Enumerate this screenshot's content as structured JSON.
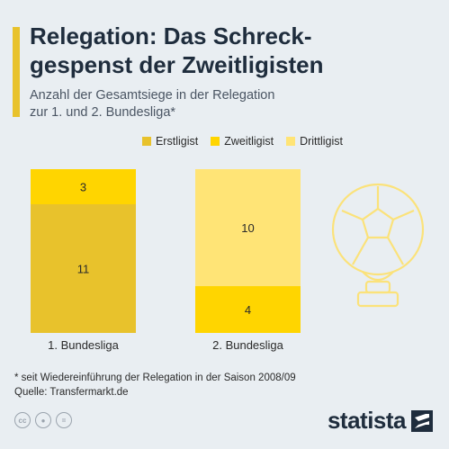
{
  "header": {
    "title": "Relegation: Das Schreck-\ngespenst der Zweitligisten",
    "subtitle": "Anzahl der Gesamtsiege in der Relegation\nzur 1. und 2. Bundesliga*"
  },
  "colors": {
    "accent": "#e8c22c",
    "erstligist": "#e8c22c",
    "zweitligist": "#ffd500",
    "drittligist": "#ffe476"
  },
  "chart_data": {
    "type": "bar",
    "stacked": true,
    "categories": [
      "1. Bundesliga",
      "2. Bundesliga"
    ],
    "series": [
      {
        "name": "Erstligist",
        "values": [
          11,
          0
        ]
      },
      {
        "name": "Zweitligist",
        "values": [
          3,
          4
        ]
      },
      {
        "name": "Drittligist",
        "values": [
          0,
          10
        ]
      }
    ],
    "ylim": [
      0,
      14
    ],
    "grid": false,
    "legend": "top-right"
  },
  "footer": {
    "note": "* seit Wiedereinführung der Relegation in der Saison 2008/09",
    "source": "Quelle: Transfermarkt.de",
    "brand": "statista"
  },
  "icons": [
    "cc-icon",
    "person-icon",
    "equals-icon",
    "trophy-icon",
    "statista-logo-icon"
  ]
}
